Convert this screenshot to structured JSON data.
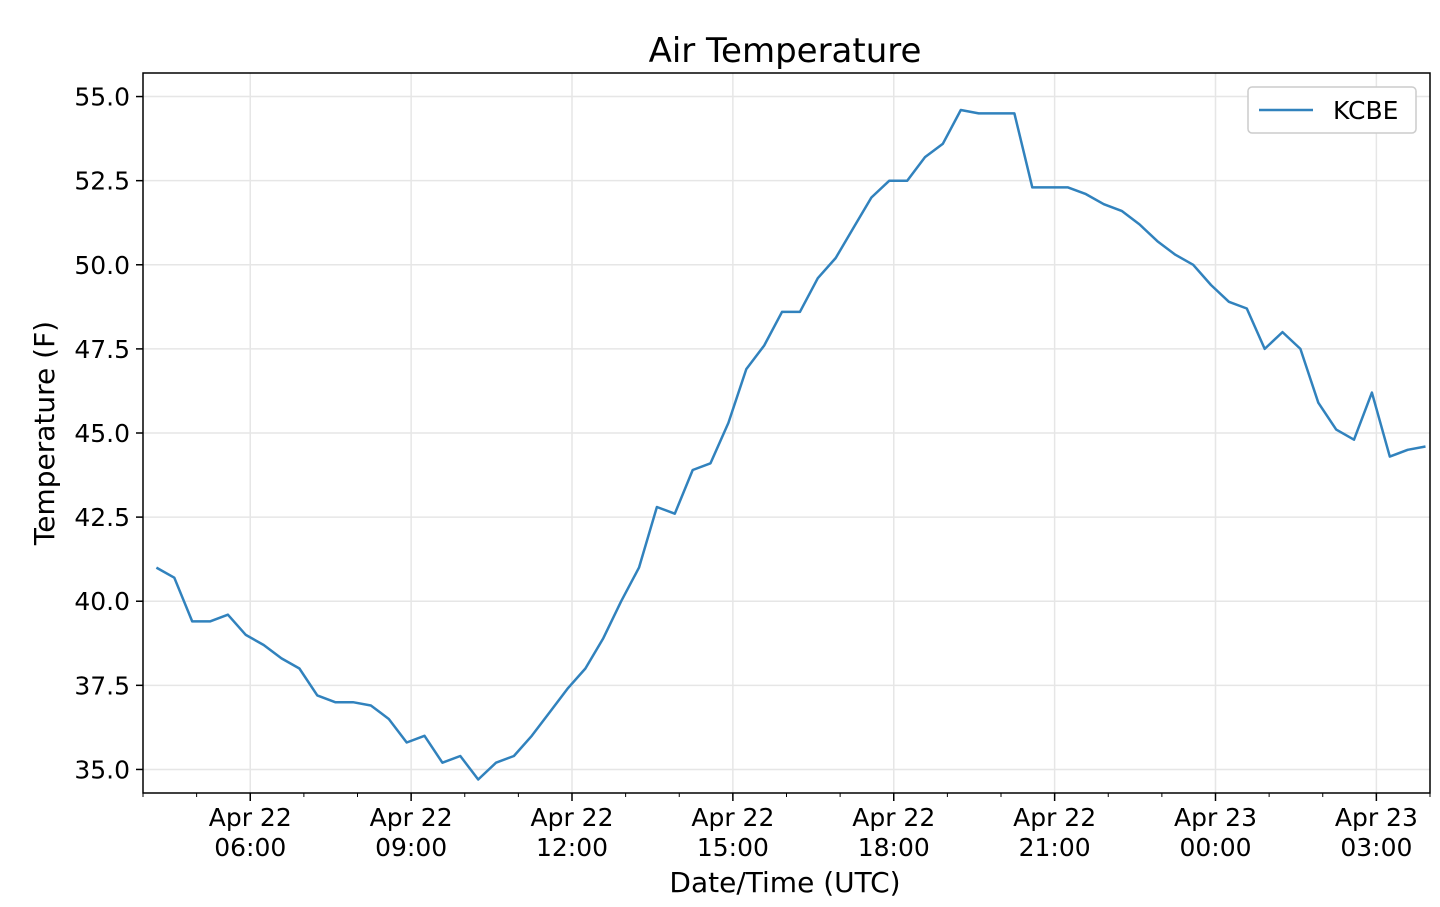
{
  "chart_data": {
    "type": "line",
    "title": "Air Temperature",
    "xlabel": "Date/Time (UTC)",
    "ylabel": "Temperature (F)",
    "ylim": [
      34.3,
      55.7
    ],
    "xlim": [
      "2023-04-22T04:00",
      "2023-04-23T04:00"
    ],
    "grid": true,
    "legend_position": "top-right",
    "line_color": "#3182bd",
    "y_ticks": [
      "35.0",
      "37.5",
      "40.0",
      "42.5",
      "45.0",
      "47.5",
      "50.0",
      "52.5",
      "55.0"
    ],
    "x_ticks": [
      {
        "date": "Apr 22",
        "time": "06:00"
      },
      {
        "date": "Apr 22",
        "time": "09:00"
      },
      {
        "date": "Apr 22",
        "time": "12:00"
      },
      {
        "date": "Apr 22",
        "time": "15:00"
      },
      {
        "date": "Apr 22",
        "time": "18:00"
      },
      {
        "date": "Apr 22",
        "time": "21:00"
      },
      {
        "date": "Apr 23",
        "time": "00:00"
      },
      {
        "date": "Apr 23",
        "time": "03:00"
      }
    ],
    "series": [
      {
        "name": "KCBE",
        "x": [
          "2023-04-22T04:15",
          "2023-04-22T04:35",
          "2023-04-22T04:55",
          "2023-04-22T05:15",
          "2023-04-22T05:35",
          "2023-04-22T05:55",
          "2023-04-22T06:15",
          "2023-04-22T06:35",
          "2023-04-22T06:55",
          "2023-04-22T07:15",
          "2023-04-22T07:35",
          "2023-04-22T07:55",
          "2023-04-22T08:15",
          "2023-04-22T08:35",
          "2023-04-22T08:55",
          "2023-04-22T09:15",
          "2023-04-22T09:35",
          "2023-04-22T09:55",
          "2023-04-22T10:15",
          "2023-04-22T10:35",
          "2023-04-22T10:55",
          "2023-04-22T11:15",
          "2023-04-22T11:35",
          "2023-04-22T11:55",
          "2023-04-22T12:15",
          "2023-04-22T12:35",
          "2023-04-22T12:55",
          "2023-04-22T13:15",
          "2023-04-22T13:35",
          "2023-04-22T13:55",
          "2023-04-22T14:15",
          "2023-04-22T14:35",
          "2023-04-22T14:55",
          "2023-04-22T15:15",
          "2023-04-22T15:35",
          "2023-04-22T15:55",
          "2023-04-22T16:15",
          "2023-04-22T16:35",
          "2023-04-22T16:55",
          "2023-04-22T17:15",
          "2023-04-22T17:35",
          "2023-04-22T17:55",
          "2023-04-22T18:15",
          "2023-04-22T18:35",
          "2023-04-22T18:55",
          "2023-04-22T19:15",
          "2023-04-22T19:35",
          "2023-04-22T19:55",
          "2023-04-22T20:15",
          "2023-04-22T20:35",
          "2023-04-22T20:55",
          "2023-04-22T21:15",
          "2023-04-22T21:35",
          "2023-04-22T21:55",
          "2023-04-22T22:15",
          "2023-04-22T22:35",
          "2023-04-22T22:55",
          "2023-04-22T23:15",
          "2023-04-22T23:35",
          "2023-04-22T23:55",
          "2023-04-23T00:15",
          "2023-04-23T00:35",
          "2023-04-23T00:55",
          "2023-04-23T01:15",
          "2023-04-23T01:35",
          "2023-04-23T01:55",
          "2023-04-23T02:15",
          "2023-04-23T02:35",
          "2023-04-23T02:55",
          "2023-04-23T03:15",
          "2023-04-23T03:35",
          "2023-04-23T03:55"
        ],
        "y": [
          41.0,
          40.7,
          39.4,
          39.4,
          39.6,
          39.0,
          38.7,
          38.3,
          38.0,
          37.2,
          37.0,
          37.0,
          36.9,
          36.5,
          35.8,
          36.0,
          35.2,
          35.4,
          34.7,
          35.2,
          35.4,
          36.0,
          36.7,
          37.4,
          38.0,
          38.9,
          40.0,
          41.0,
          42.8,
          42.6,
          43.9,
          44.1,
          45.3,
          46.9,
          47.6,
          48.6,
          48.6,
          49.6,
          50.2,
          51.1,
          52.0,
          52.5,
          52.5,
          53.2,
          53.6,
          54.6,
          54.5,
          54.5,
          54.5,
          52.3,
          52.3,
          52.3,
          52.1,
          51.8,
          51.6,
          51.2,
          50.7,
          50.3,
          50.0,
          49.4,
          48.9,
          48.7,
          47.5,
          48.0,
          47.5,
          45.9,
          45.1,
          44.8,
          46.2,
          44.3,
          44.5,
          44.6
        ]
      }
    ]
  }
}
